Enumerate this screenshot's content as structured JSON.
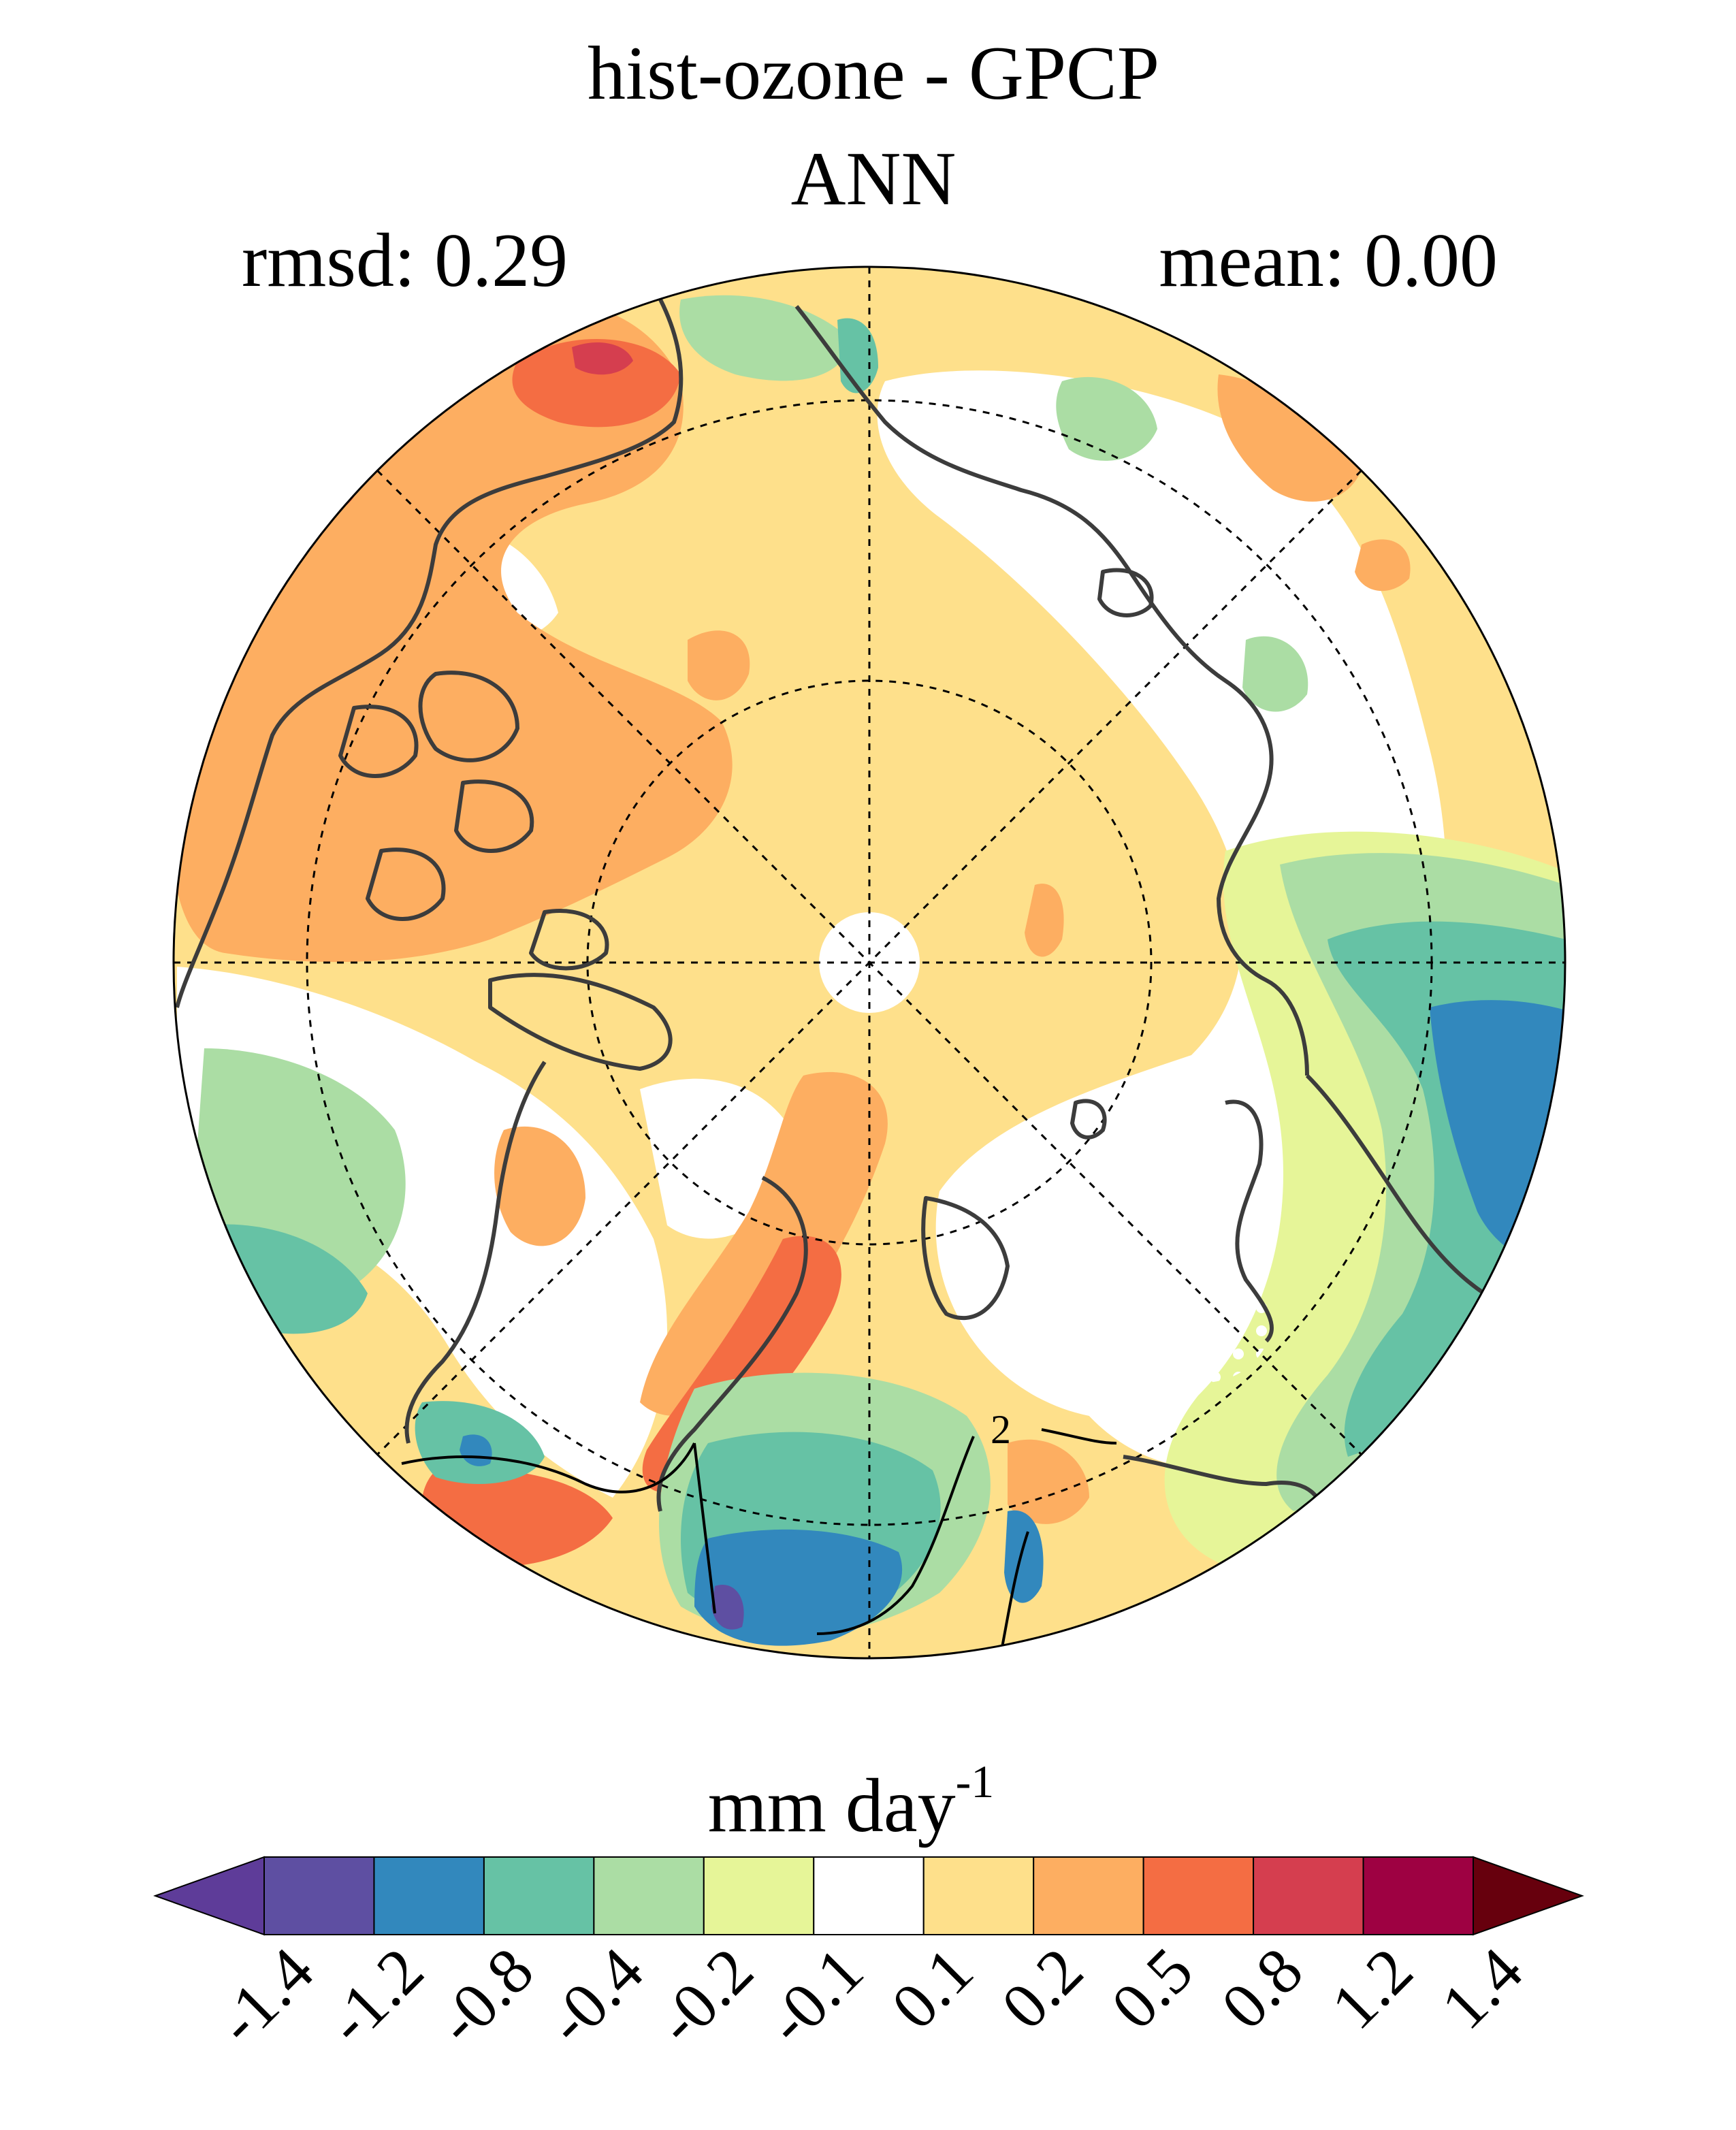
{
  "map": {
    "title": "hist-ozone - GPCP",
    "season": "ANN",
    "rmsd_label": "rmsd: 0.29",
    "mean_label": "mean: 0.00",
    "projection": "north-polar-stereographic",
    "contour_label": "2",
    "colors": {
      "coastline": "#3c3c3c",
      "graticule": "#000000",
      "contour": "#000000"
    }
  },
  "colorbar": {
    "units": "mm day",
    "units_exponent": "-1",
    "tick_labels": [
      "-1.4",
      "-1.2",
      "-0.8",
      "-0.4",
      "-0.2",
      "-0.1",
      "0.1",
      "0.2",
      "0.5",
      "0.8",
      "1.2",
      "1.4"
    ],
    "colors": [
      "#5e3c99",
      "#5e4fa2",
      "#3288bd",
      "#66c2a5",
      "#abdda4",
      "#e6f598",
      "#ffffff",
      "#fee08b",
      "#fdae61",
      "#f46d43",
      "#d53e4f",
      "#9e0142",
      "#67000d"
    ]
  }
}
